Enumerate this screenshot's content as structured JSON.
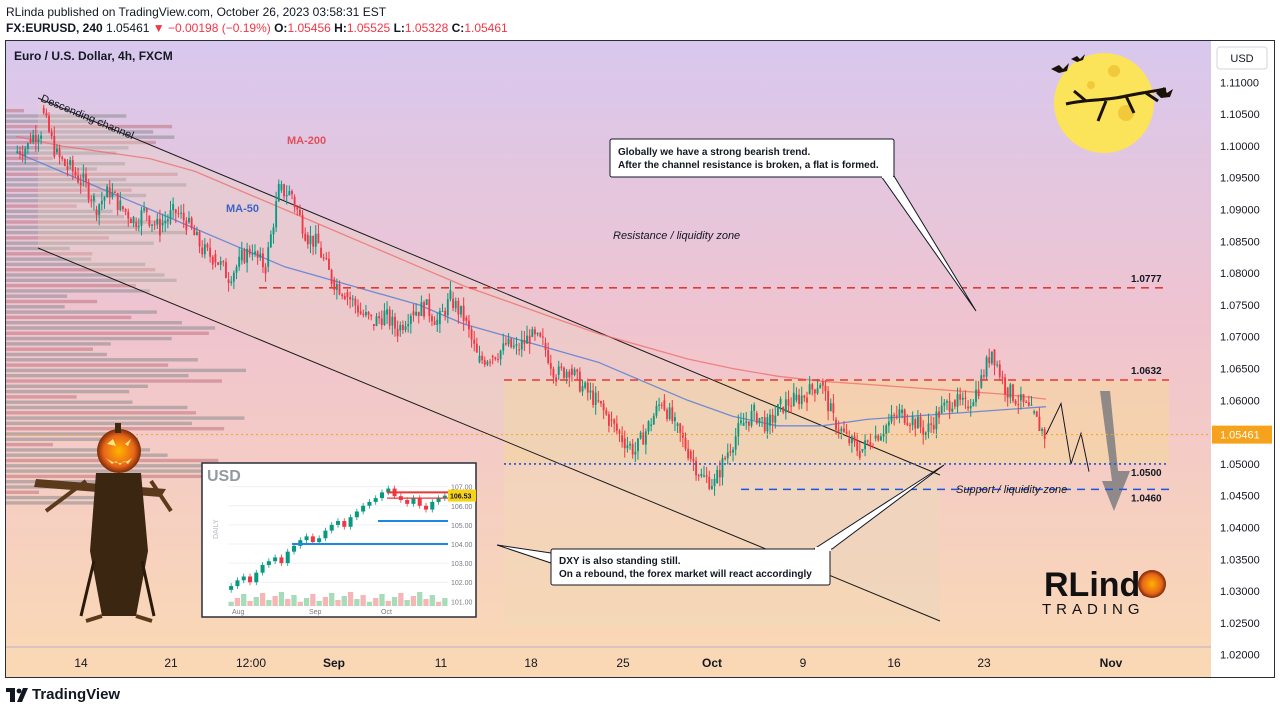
{
  "header": {
    "line1": "RLinda published on TradingView.com, October 26, 2023 03:58:31 EST",
    "symbol": "FX:EURUSD, 240",
    "last": "1.05461",
    "change": "▼ −0.00198 (−0.19%)",
    "o_label": "O:",
    "o_val": "1.05456",
    "h_label": "H:",
    "h_val": "1.05525",
    "l_label": "L:",
    "l_val": "1.05328",
    "c_label": "C:",
    "c_val": "1.05461"
  },
  "footer": {
    "brand": "TradingView"
  },
  "chart_data": {
    "type": "candlestick",
    "title": "Euro / U.S. Dollar, 4h, FXCM",
    "currency_button": "USD",
    "price_label": "1.05461",
    "y_ticks": [
      "1.11000",
      "1.10500",
      "1.10000",
      "1.09500",
      "1.09000",
      "1.08500",
      "1.08000",
      "1.07500",
      "1.07000",
      "1.06500",
      "1.06000",
      "1.05500",
      "1.05000",
      "1.04500",
      "1.04000",
      "1.03500",
      "1.03000",
      "1.02500",
      "1.02000"
    ],
    "y_tick_values": [
      1.11,
      1.105,
      1.1,
      1.095,
      1.09,
      1.085,
      1.08,
      1.075,
      1.07,
      1.065,
      1.06,
      1.055,
      1.05,
      1.045,
      1.04,
      1.035,
      1.03,
      1.025,
      1.02
    ],
    "ylim": [
      1.0165,
      1.1165
    ],
    "x_ticks": [
      "14",
      "21",
      "12:00",
      "Sep",
      "11",
      "18",
      "25",
      "Oct",
      "9",
      "16",
      "23",
      "Nov"
    ],
    "levels": [
      {
        "label": "1.0777",
        "value": 1.0777,
        "color": "#e53935",
        "style": "dashed"
      },
      {
        "label": "1.0632",
        "value": 1.0632,
        "color": "#e53935",
        "style": "dashed"
      },
      {
        "label": "1.0500",
        "value": 1.05,
        "color": "#1e53e5",
        "style": "dotted"
      },
      {
        "label": "1.0460",
        "value": 1.046,
        "color": "#1e53e5",
        "style": "dashed"
      }
    ],
    "annotations": {
      "descending_channel": "Descending channel",
      "ma200": "MA-200",
      "ma50": "MA-50",
      "resistance_zone": "Resistance / liquidity zone",
      "support_zone": "Support / liquidity zone",
      "note1_line1": "Globally we have a strong bearish trend.",
      "note1_line2": "After the channel resistance is broken, a flat is formed.",
      "note2_line1": "DXY is also standing still.",
      "note2_line2": "On a rebound, the forex market will react accordingly"
    },
    "price_path": [
      [
        1.099,
        1.1
      ],
      [
        1.101,
        1.1025
      ],
      [
        1.106,
        1.0995
      ],
      [
        1.099,
        1.0965
      ],
      [
        1.097,
        1.0945
      ],
      [
        1.095,
        1.0915
      ],
      [
        1.09,
        1.0925
      ],
      [
        1.0935,
        1.0905
      ],
      [
        1.0905,
        1.0885
      ],
      [
        1.088,
        1.09
      ],
      [
        1.089,
        1.087
      ],
      [
        1.0875,
        1.0895
      ],
      [
        1.09,
        1.088
      ],
      [
        1.088,
        1.0845
      ],
      [
        1.084,
        1.0825
      ],
      [
        1.083,
        1.08
      ],
      [
        1.079,
        1.0815
      ],
      [
        1.082,
        1.084
      ],
      [
        1.083,
        1.081
      ],
      [
        1.081,
        1.093
      ],
      [
        1.093,
        1.0925
      ],
      [
        1.092,
        1.0865
      ],
      [
        1.086,
        1.0845
      ],
      [
        1.084,
        1.079
      ],
      [
        1.079,
        1.077
      ],
      [
        1.077,
        1.0745
      ],
      [
        1.074,
        1.0725
      ],
      [
        1.072,
        1.0735
      ],
      [
        1.0735,
        1.071
      ],
      [
        1.071,
        1.074
      ],
      [
        1.074,
        1.0745
      ],
      [
        1.075,
        1.0725
      ],
      [
        1.072,
        1.076
      ],
      [
        1.076,
        1.073
      ],
      [
        1.073,
        1.067
      ],
      [
        1.066,
        1.067
      ],
      [
        1.067,
        1.068
      ],
      [
        1.069,
        1.068
      ],
      [
        1.068,
        1.07
      ],
      [
        1.07,
        1.069
      ],
      [
        1.069,
        1.064
      ],
      [
        1.064,
        1.065
      ],
      [
        1.065,
        1.062
      ],
      [
        1.062,
        1.06
      ],
      [
        1.06,
        1.057
      ],
      [
        1.057,
        1.054
      ],
      [
        1.054,
        1.052
      ],
      [
        1.052,
        1.056
      ],
      [
        1.056,
        1.06
      ],
      [
        1.06,
        1.056
      ],
      [
        1.056,
        1.052
      ],
      [
        1.052,
        1.048
      ],
      [
        1.048,
        1.047
      ],
      [
        1.047,
        1.052
      ],
      [
        1.052,
        1.056
      ],
      [
        1.056,
        1.058
      ],
      [
        1.058,
        1.056
      ],
      [
        1.056,
        1.059
      ],
      [
        1.059,
        1.06
      ],
      [
        1.06,
        1.061
      ],
      [
        1.061,
        1.063
      ],
      [
        1.063,
        1.057
      ],
      [
        1.057,
        1.054
      ],
      [
        1.054,
        1.052
      ],
      [
        1.052,
        1.054
      ],
      [
        1.054,
        1.056
      ],
      [
        1.056,
        1.058
      ],
      [
        1.058,
        1.057
      ],
      [
        1.057,
        1.055
      ],
      [
        1.055,
        1.058
      ],
      [
        1.058,
        1.06
      ],
      [
        1.06,
        1.059
      ],
      [
        1.059,
        1.062
      ],
      [
        1.062,
        1.068
      ],
      [
        1.068,
        1.062
      ],
      [
        1.062,
        1.06
      ],
      [
        1.06,
        1.058
      ],
      [
        1.058,
        1.0546
      ]
    ],
    "ma200": [
      1.1015,
      1.1,
      1.099,
      1.098,
      1.096,
      1.093,
      1.09,
      1.087,
      1.084,
      1.081,
      1.078,
      1.0755,
      1.073,
      1.0705,
      1.0685,
      1.0665,
      1.065,
      1.0638,
      1.063,
      1.0625,
      1.062,
      1.0615,
      1.061,
      1.0602
    ],
    "ma50": [
      1.099,
      1.096,
      1.093,
      1.09,
      1.087,
      1.084,
      1.081,
      1.079,
      1.077,
      1.075,
      1.072,
      1.07,
      1.068,
      1.066,
      1.063,
      1.06,
      1.0575,
      1.056,
      1.056,
      1.057,
      1.0575,
      1.058,
      1.0585,
      1.059
    ],
    "projection": [
      1.0546,
      1.0595,
      1.05,
      1.0548,
      1.0488
    ],
    "inset": {
      "title": "USD",
      "y_axis_label": "DAILY",
      "y_ticks": [
        "107.00",
        "106.00",
        "105.00",
        "104.00",
        "103.00",
        "102.00",
        "101.00"
      ],
      "y_tick_values": [
        107,
        106,
        105,
        104,
        103,
        102,
        101
      ],
      "ylim": [
        100.6,
        107.4
      ],
      "x_ticks": [
        "Aug",
        "Sep",
        "Oct"
      ],
      "price_label": "106.53",
      "series": [
        101.8,
        102.1,
        102.3,
        102.0,
        102.5,
        102.9,
        103.1,
        103.3,
        103.0,
        103.6,
        103.9,
        104.2,
        104.4,
        104.1,
        104.3,
        104.7,
        105.0,
        105.2,
        104.9,
        105.4,
        105.7,
        106.0,
        106.2,
        106.4,
        106.7,
        106.9,
        106.5,
        106.3,
        106.1,
        106.4,
        106.0,
        105.8,
        106.2,
        106.4,
        106.53
      ]
    },
    "logo": {
      "line1": "RLinda",
      "line2": "TRADING"
    }
  }
}
